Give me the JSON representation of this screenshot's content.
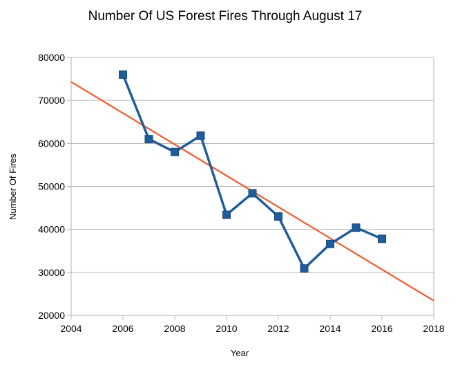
{
  "chart_data": {
    "type": "line",
    "title": "Number Of US Forest Fires Through August 17",
    "xlabel": "Year",
    "ylabel": "Number Of Fires",
    "xlim": [
      2004,
      2018
    ],
    "ylim": [
      20000,
      80000
    ],
    "x_ticks": [
      "2004",
      "2006",
      "2008",
      "2010",
      "2012",
      "2014",
      "2016",
      "2018"
    ],
    "y_ticks": [
      "20000",
      "30000",
      "40000",
      "50000",
      "60000",
      "70000",
      "80000"
    ],
    "grid": "horizontal",
    "legend": "none",
    "series": [
      {
        "x": [
          2006,
          2007,
          2008,
          2009,
          2010,
          2011,
          2012,
          2013,
          2014,
          2015,
          2016
        ],
        "values": [
          76000,
          61000,
          58000,
          61800,
          43400,
          48400,
          43000,
          30900,
          36600,
          40400,
          37800
        ],
        "color": "#1f5c99",
        "marker": "square"
      }
    ],
    "trendline": {
      "x": [
        2004,
        2018
      ],
      "values": [
        74300,
        23400
      ],
      "color": "#f0592b"
    }
  }
}
